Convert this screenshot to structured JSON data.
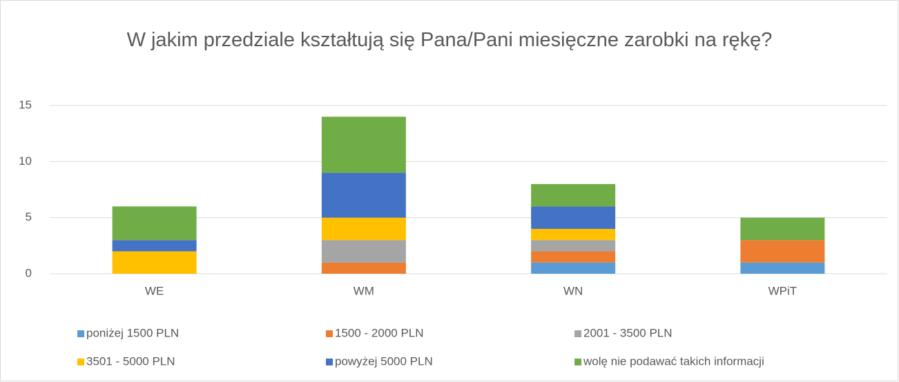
{
  "chart_data": {
    "type": "stacked_bar",
    "title": "W jakim przedziale kształtują się Pana/Pani miesięczne zarobki na rękę?",
    "categories": [
      "WE",
      "WM",
      "WN",
      "WPiT"
    ],
    "series": [
      {
        "name": "poniżej 1500 PLN",
        "color": "#5b9bd5",
        "values": [
          0,
          0,
          1,
          1
        ]
      },
      {
        "name": "1500 - 2000 PLN",
        "color": "#ed7d31",
        "values": [
          0,
          1,
          1,
          2
        ]
      },
      {
        "name": "2001 - 3500 PLN",
        "color": "#a5a5a5",
        "values": [
          0,
          2,
          1,
          0
        ]
      },
      {
        "name": "3501 - 5000 PLN",
        "color": "#ffc000",
        "values": [
          2,
          2,
          1,
          0
        ]
      },
      {
        "name": "powyżej 5000 PLN",
        "color": "#4472c4",
        "values": [
          1,
          4,
          2,
          0
        ]
      },
      {
        "name": "wolę nie podawać takich informacji",
        "color": "#70ad47",
        "values": [
          3,
          5,
          2,
          2
        ]
      }
    ],
    "ylim": [
      0,
      15
    ],
    "yticks": [
      0,
      5,
      10,
      15
    ],
    "grid": true,
    "legend": "bottom"
  }
}
